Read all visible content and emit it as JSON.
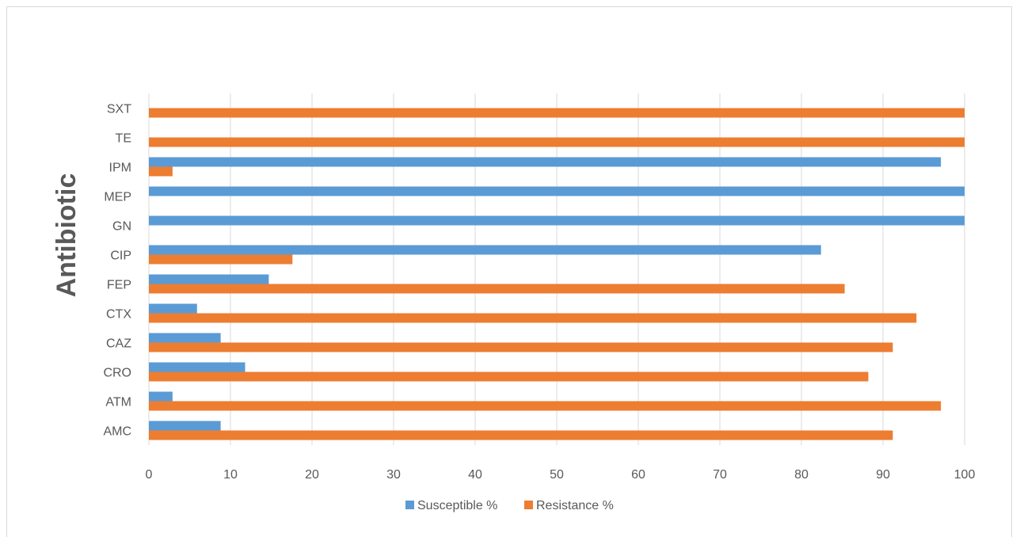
{
  "chart_data": {
    "type": "bar",
    "orientation": "horizontal",
    "title": "",
    "xlabel": "",
    "ylabel": "Antibiotic",
    "categories": [
      "AMC",
      "ATM",
      "CRO",
      "CAZ",
      "CTX",
      "FEP",
      "CIP",
      "GN",
      "MEP",
      "IPM",
      "TE",
      "SXT"
    ],
    "series": [
      {
        "name": "Susceptible %",
        "color": "#5B9BD5",
        "values": [
          8.8,
          2.9,
          11.8,
          8.8,
          5.9,
          14.7,
          82.4,
          100,
          100,
          97.1,
          0,
          0
        ]
      },
      {
        "name": "Resistance %",
        "color": "#ED7D31",
        "values": [
          91.2,
          97.1,
          88.2,
          91.2,
          94.1,
          85.3,
          17.6,
          0,
          0,
          2.9,
          100,
          100
        ]
      }
    ],
    "xlim": [
      0,
      100
    ],
    "xticks": [
      "0",
      "10",
      "20",
      "30",
      "40",
      "50",
      "60",
      "70",
      "80",
      "90",
      "100"
    ],
    "grid": "vertical",
    "legend_position": "bottom"
  }
}
